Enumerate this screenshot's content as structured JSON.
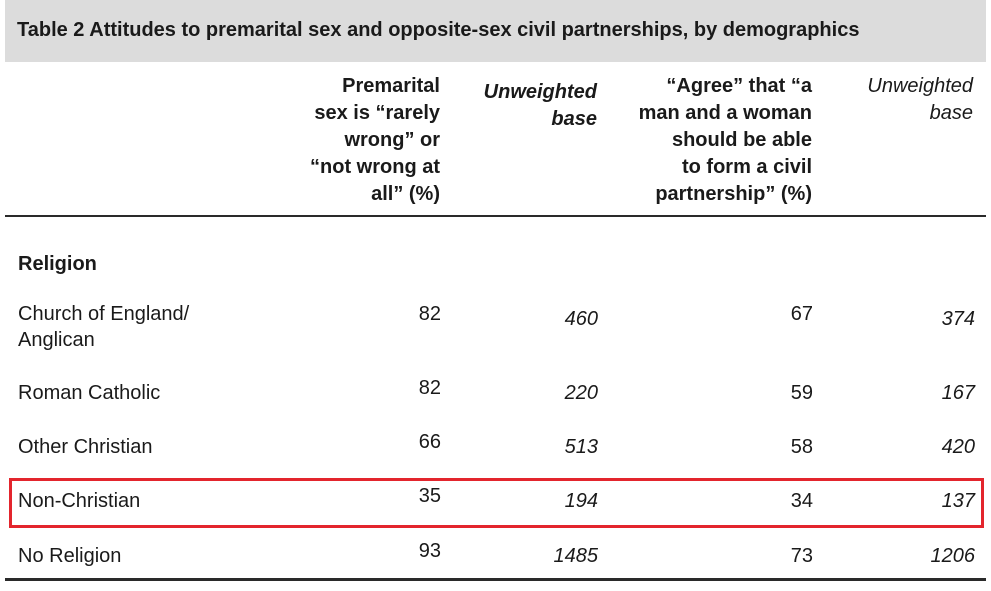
{
  "table": {
    "title": "Table 2 Attitudes to premarital sex and opposite-sex civil partnerships, by demographics",
    "headers": {
      "premarital": [
        "Premarital",
        "sex is “rarely",
        "wrong” or",
        "“not wrong at",
        "all” (%)"
      ],
      "base1": [
        "Unweighted",
        "base"
      ],
      "civil": [
        "“Agree” that “a",
        "man and a woman",
        "should be able",
        "to form a civil",
        "partnership” (%)"
      ],
      "base2": [
        "Unweighted",
        "base"
      ]
    },
    "section": "Religion",
    "rows": [
      {
        "label": [
          "Church of England/",
          "Anglican"
        ],
        "premarital": "82",
        "base1": "460",
        "civil": "67",
        "base2": "374"
      },
      {
        "label": [
          "Roman Catholic"
        ],
        "premarital": "82",
        "base1": "220",
        "civil": "59",
        "base2": "167"
      },
      {
        "label": [
          "Other Christian"
        ],
        "premarital": "66",
        "base1": "513",
        "civil": "58",
        "base2": "420"
      },
      {
        "label": [
          "Non-Christian"
        ],
        "premarital": "35",
        "base1": "194",
        "civil": "34",
        "base2": "137"
      },
      {
        "label": [
          "No Religion"
        ],
        "premarital": "93",
        "base1": "1485",
        "civil": "73",
        "base2": "1206"
      }
    ],
    "highlight_color": "#e3252d"
  }
}
